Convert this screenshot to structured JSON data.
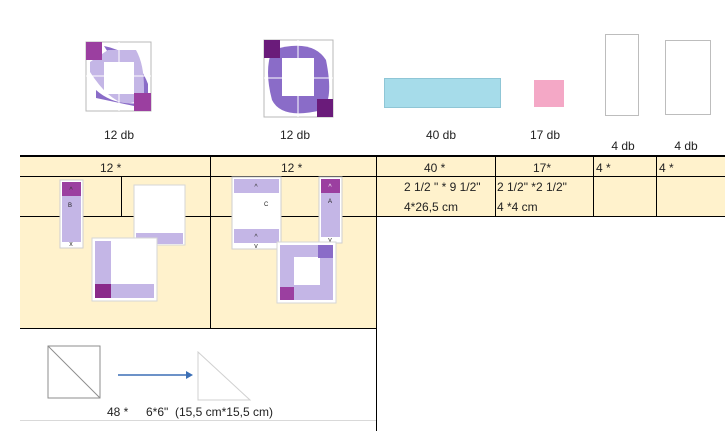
{
  "top_labels": {
    "block_a": "12 db",
    "block_b": "12 db",
    "strip_blue": "40 db",
    "square_pink": "17 db",
    "rect_1": "4 db",
    "rect_2": "4 db"
  },
  "table_header": [
    "12 *",
    "12 *",
    "40 *",
    "17*",
    "4 *",
    "4 *"
  ],
  "cell_sizes": {
    "blue_line1": "2 1/2 \" * 9 1/2\"",
    "blue_line2": "4*26,5 cm",
    "pink_line1": "2 1/2\" *2 1/2\"",
    "pink_line2": "4 *4 cm"
  },
  "piece_letters": {
    "a": "A",
    "b": "B",
    "c": "C"
  },
  "bottom": {
    "count": "48 *",
    "size": "6*6\"  (15,5 cm*15,5 cm)"
  },
  "colors": {
    "purple_dark": "#6a1b7a",
    "purple_mid": "#8a6cc8",
    "lavender": "#c4b6e6",
    "magenta": "#9b3fa0",
    "light_blue": "#a6dcea",
    "pink": "#f4a8c6",
    "cream": "#fff2cc",
    "arrow_blue": "#3b6fb6"
  }
}
